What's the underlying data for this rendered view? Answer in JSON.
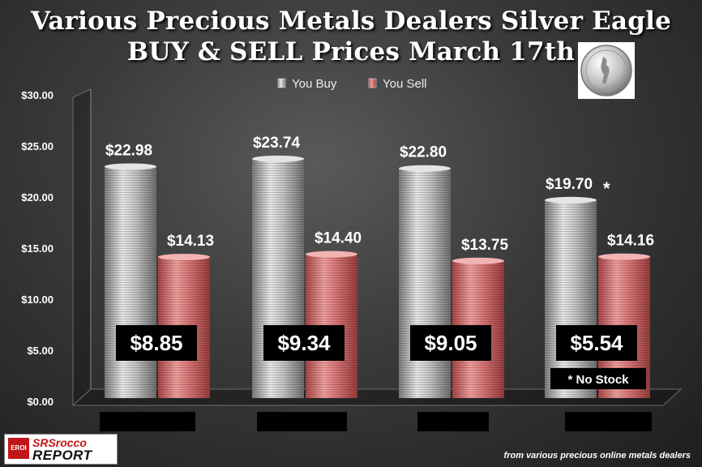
{
  "header": {
    "title_line1": "Various Precious Metals Dealers Silver Eagle",
    "title_line2": "BUY & SELL Prices March 17th"
  },
  "legend": {
    "items": [
      {
        "label": "You Buy",
        "color": "#c8c8c8"
      },
      {
        "label": "You Sell",
        "color": "#e07a7a"
      }
    ],
    "placement": "top-center"
  },
  "notes": {
    "no_stock": "* No Stock",
    "asterisk": "*",
    "source": "from various precious online metals dealers"
  },
  "logo": {
    "badge": "EROI",
    "line1": "SRSrocco",
    "line2": "REPORT"
  },
  "chart_data": {
    "type": "bar",
    "categories": [
      "",
      "",
      "",
      ""
    ],
    "series": [
      {
        "name": "You Buy",
        "values": [
          22.98,
          23.74,
          22.8,
          19.7
        ],
        "labels": [
          "$22.98",
          "$23.74",
          "$22.80",
          "$19.70"
        ],
        "color": "#c8c8c8"
      },
      {
        "name": "You Sell",
        "values": [
          14.13,
          14.4,
          13.75,
          14.16
        ],
        "labels": [
          "$14.13",
          "$14.40",
          "$13.75",
          "$14.16"
        ],
        "color": "#e07a7a"
      }
    ],
    "spreads": [
      "$8.85",
      "$9.34",
      "$9.05",
      "$5.54"
    ],
    "ylim": [
      0,
      30
    ],
    "yticks": [
      "$0.00",
      "$5.00",
      "$10.00",
      "$15.00",
      "$20.00",
      "$25.00",
      "$30.00"
    ],
    "ytick_values": [
      0,
      5,
      10,
      15,
      20,
      25,
      30
    ],
    "grid": false
  }
}
